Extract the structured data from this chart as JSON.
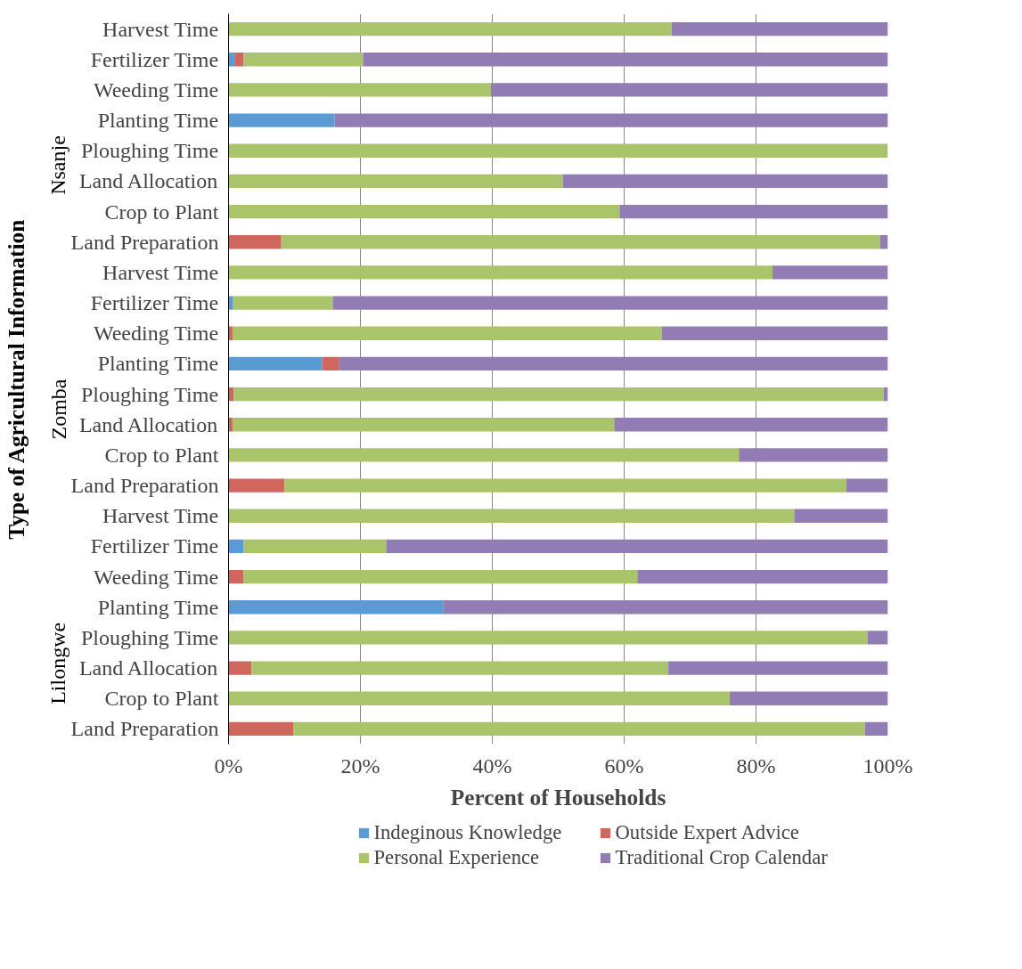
{
  "chart_data": {
    "type": "bar",
    "orientation": "horizontal",
    "stacked": true,
    "xlabel": "Percent of Households",
    "ylabel": "Type of Agricultural Information",
    "categories": [
      "Harvest Time",
      "Fertilizer Time",
      "Weeding Time",
      "Planting Time",
      "Ploughing Time",
      "Land Allocation",
      "Crop to Plant",
      "Land Preparation",
      "Harvest Time",
      "Fertilizer Time",
      "Weeding Time",
      "Planting Time",
      "Ploughing Time",
      "Land Allocation",
      "Crop to Plant",
      "Land Preparation",
      "Harvest Time",
      "Fertilizer Time",
      "Weeding Time",
      "Planting Time",
      "Ploughing Time",
      "Land Allocation",
      "Crop to Plant",
      "Land Preparation"
    ],
    "annotations": [
      "Nsanje",
      "Zomba",
      "Lilongwe"
    ],
    "series": [
      {
        "name": "Indeginous Knowledge",
        "color": "#5b9bd5",
        "values": [
          0,
          1.0,
          0,
          16.1,
          0,
          0,
          0,
          0,
          0,
          0.7,
          0,
          14.2,
          0,
          0,
          0,
          0,
          0,
          2.3,
          0,
          32.6,
          0,
          0,
          0,
          0
        ]
      },
      {
        "name": "Outside Expert Advice",
        "color": "#d0675f",
        "values": [
          0,
          1.3,
          0,
          0,
          0,
          0,
          0,
          8.0,
          0,
          0,
          0.6,
          2.6,
          0.8,
          0.6,
          0,
          8.5,
          0,
          0,
          2.3,
          0,
          0,
          3.5,
          0,
          9.8
        ]
      },
      {
        "name": "Personal Experience",
        "color": "#a9c46b",
        "values": [
          67.2,
          18.1,
          39.8,
          0,
          100,
          50.7,
          59.3,
          90.8,
          82.5,
          15.1,
          65.1,
          0,
          98.6,
          57.9,
          77.4,
          85.2,
          85.8,
          21.6,
          59.7,
          0,
          96.9,
          63.2,
          76.0,
          86.7
        ]
      },
      {
        "name": "Traditional Crop Calendar",
        "color": "#927cb4",
        "values": [
          32.8,
          79.6,
          60.2,
          83.9,
          0,
          49.3,
          40.7,
          1.2,
          17.5,
          84.2,
          34.3,
          83.2,
          0.6,
          41.5,
          22.6,
          6.3,
          14.2,
          76.1,
          38.0,
          67.4,
          3.1,
          33.3,
          24.0,
          3.5
        ]
      }
    ],
    "xlim": [
      0,
      100
    ],
    "xticks": [
      {
        "value": 0,
        "label": "0%"
      },
      {
        "value": 20,
        "label": "20%"
      },
      {
        "value": 40,
        "label": "40%"
      },
      {
        "value": 60,
        "label": "60%"
      },
      {
        "value": 80,
        "label": "80%"
      },
      {
        "value": 100,
        "label": "100%"
      }
    ],
    "grid": "x",
    "legend": "bottom"
  }
}
